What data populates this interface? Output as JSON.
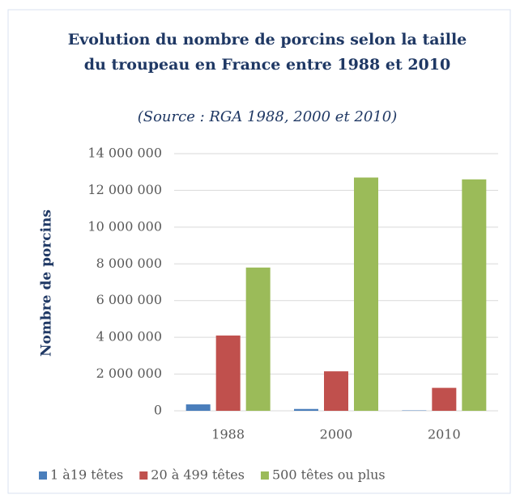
{
  "chart_data": {
    "type": "bar",
    "title": "Evolution du nombre de porcins selon la taille du troupeau en France entre 1988 et 2010",
    "subtitle": "(Source : RGA 1988, 2000 et 2010)",
    "y_label": "Nombre de porcins",
    "categories": [
      "1988",
      "2000",
      "2010"
    ],
    "series": [
      {
        "name": "1 à19 têtes",
        "color": "#4a7ebb",
        "values": [
          350000,
          100000,
          20000
        ]
      },
      {
        "name": "20 à 499 têtes",
        "color": "#c0504d",
        "values": [
          4100000,
          2150000,
          1250000
        ]
      },
      {
        "name": "500 têtes ou plus",
        "color": "#9bbb59",
        "values": [
          7800000,
          12700000,
          12600000
        ]
      }
    ],
    "ylim": [
      0,
      14000000
    ],
    "yticks": [
      0,
      {
        "value": 2000000,
        "label": "2 000 000"
      },
      {
        "value": 4000000,
        "label": "4 000 000"
      },
      {
        "value": 6000000,
        "label": "6 000 000"
      },
      {
        "value": 8000000,
        "label": "8 000 000"
      },
      {
        "value": 10000000,
        "label": "10 000 000"
      },
      {
        "value": 12000000,
        "label": "12 000 000"
      },
      {
        "value": 14000000,
        "label": "14 000 000"
      }
    ],
    "grid": true,
    "legend": "bottom"
  }
}
